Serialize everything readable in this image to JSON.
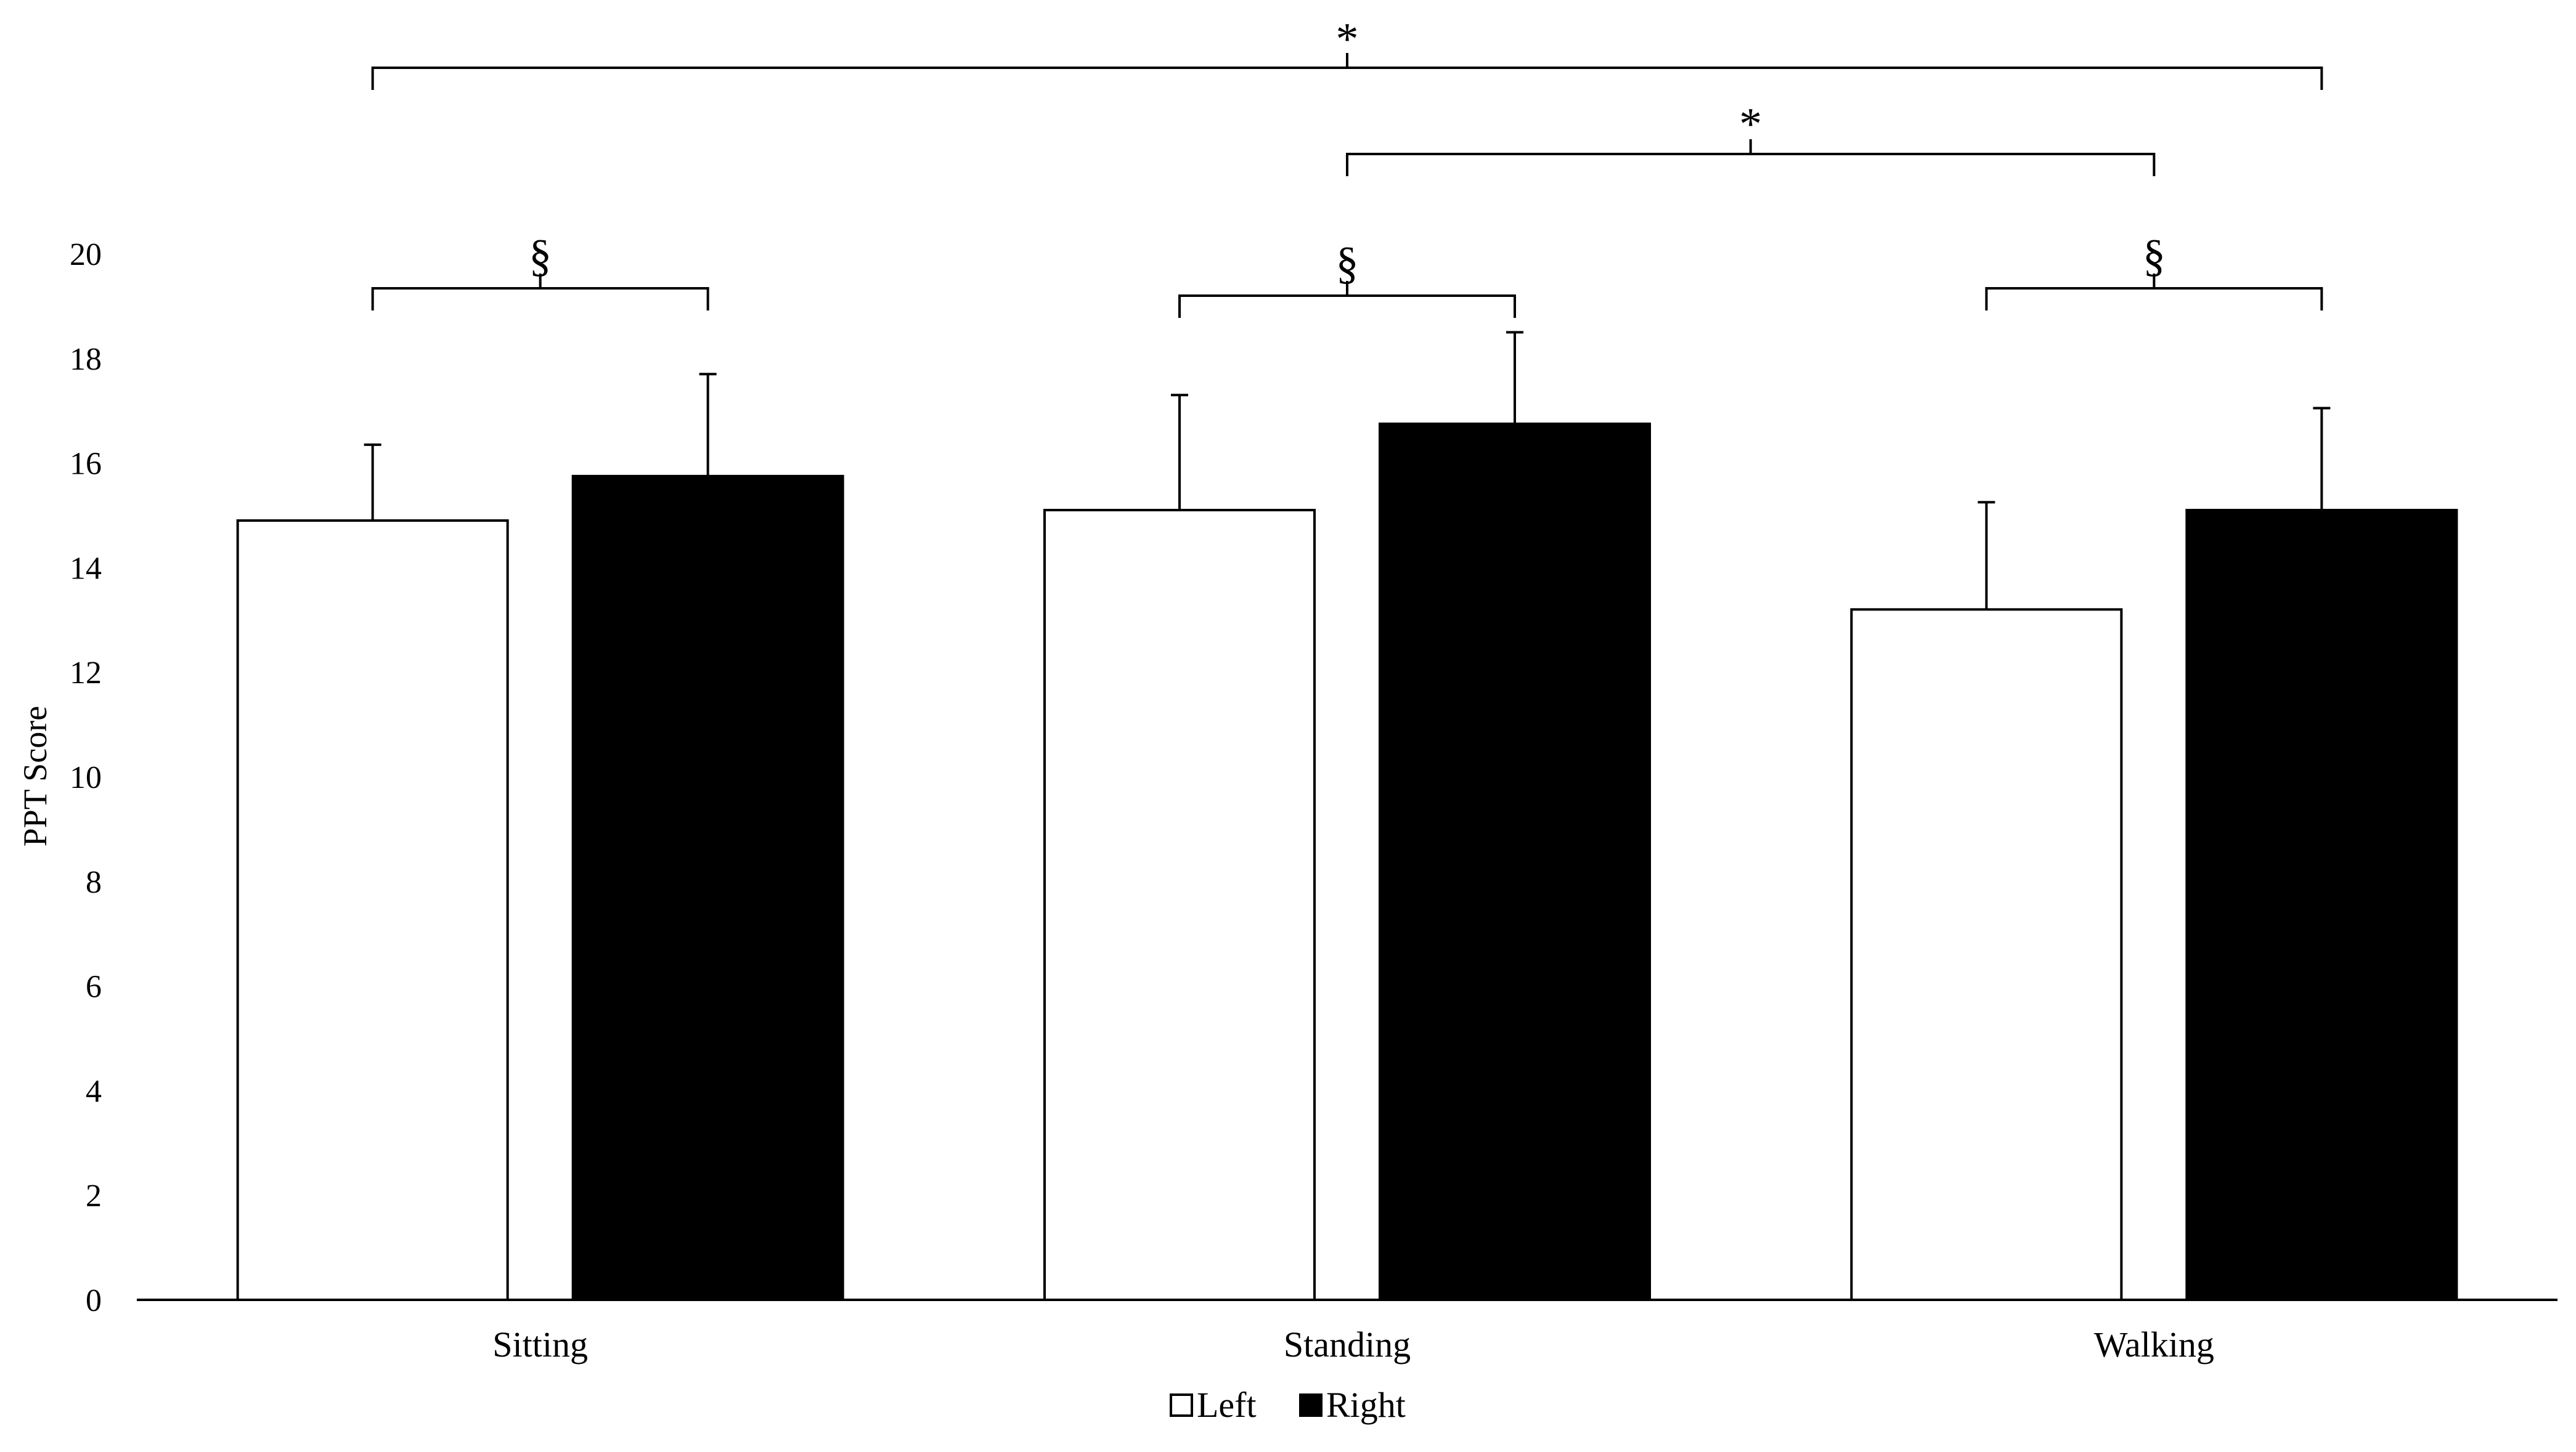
{
  "chart_data": {
    "type": "bar",
    "ylabel": "PPT Score",
    "ylim": [
      0,
      20
    ],
    "yticks": [
      0,
      2,
      4,
      6,
      8,
      10,
      12,
      14,
      16,
      18,
      20
    ],
    "categories": [
      "Sitting",
      "Standing",
      "Walking"
    ],
    "series": [
      {
        "name": "Left",
        "color": "#ffffff",
        "values": [
          14.9,
          15.1,
          13.2
        ],
        "errors": [
          1.45,
          2.2,
          2.05
        ]
      },
      {
        "name": "Right",
        "color": "#000000",
        "values": [
          15.75,
          16.75,
          15.1
        ],
        "errors": [
          1.95,
          1.75,
          1.95
        ]
      }
    ],
    "legend_position": "bottom-center",
    "grid": false,
    "significance": [
      {
        "symbol": "§",
        "from": {
          "category": 0,
          "series": 0
        },
        "to": {
          "category": 0,
          "series": 1
        }
      },
      {
        "symbol": "§",
        "from": {
          "category": 1,
          "series": 0
        },
        "to": {
          "category": 1,
          "series": 1
        }
      },
      {
        "symbol": "§",
        "from": {
          "category": 2,
          "series": 0
        },
        "to": {
          "category": 2,
          "series": 1
        }
      },
      {
        "symbol": "*",
        "from": {
          "category": 1,
          "series": "center"
        },
        "to": {
          "category": 2,
          "series": "center"
        }
      },
      {
        "symbol": "*",
        "from": {
          "category": 0,
          "series": 0
        },
        "to": {
          "category": 2,
          "series": 1
        }
      }
    ]
  }
}
